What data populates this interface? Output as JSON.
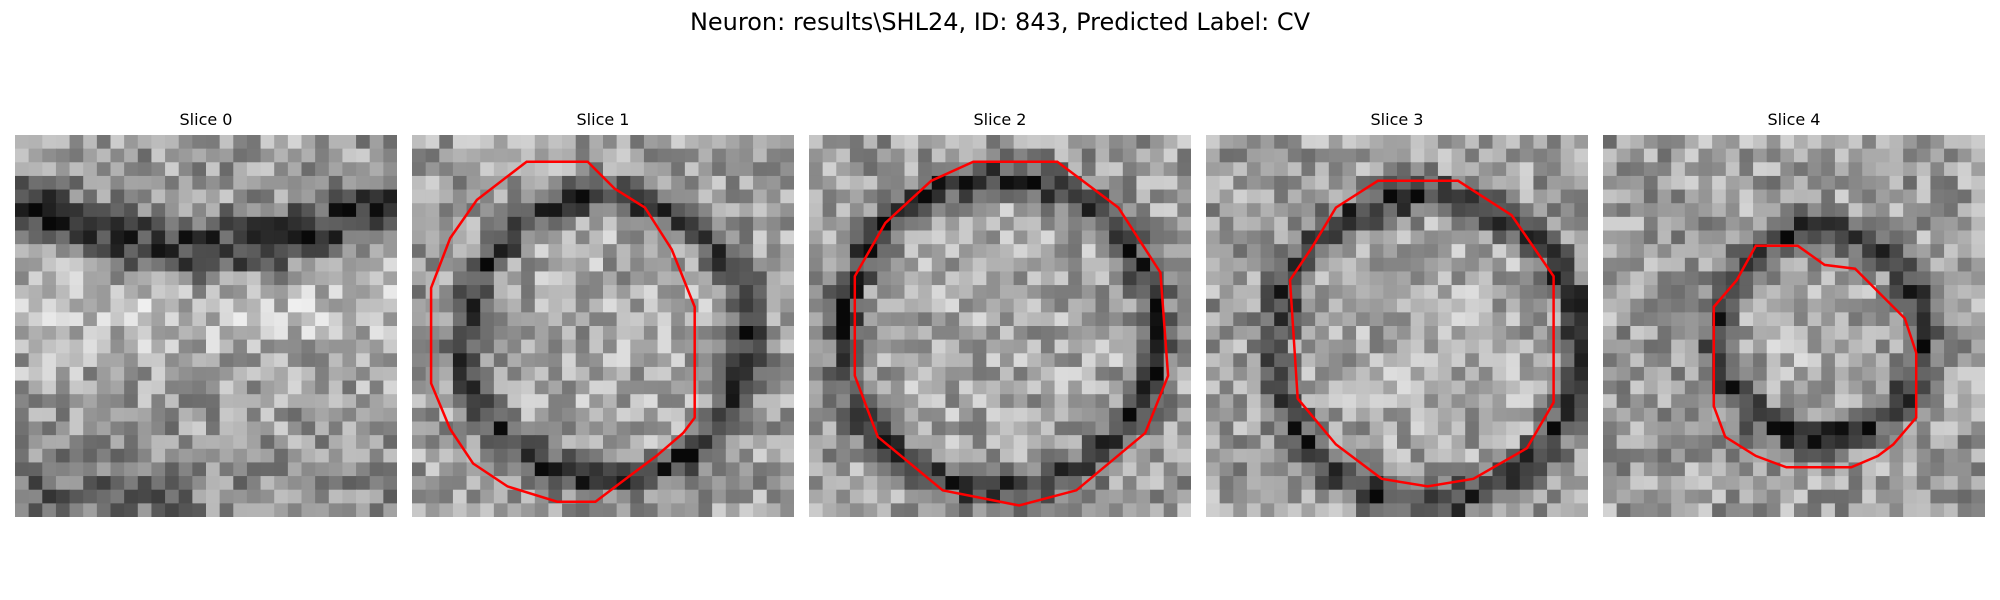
{
  "figure": {
    "title": "Neuron: results\\SHL24, ID: 843, Predicted Label: CV"
  },
  "panels": [
    {
      "title": "Slice 0",
      "has_contour": false
    },
    {
      "title": "Slice 1",
      "has_contour": true
    },
    {
      "title": "Slice 2",
      "has_contour": true
    },
    {
      "title": "Slice 3",
      "has_contour": true
    },
    {
      "title": "Slice 4",
      "has_contour": true
    }
  ],
  "colors": {
    "contour": "#ff0000",
    "background": "#ffffff"
  }
}
